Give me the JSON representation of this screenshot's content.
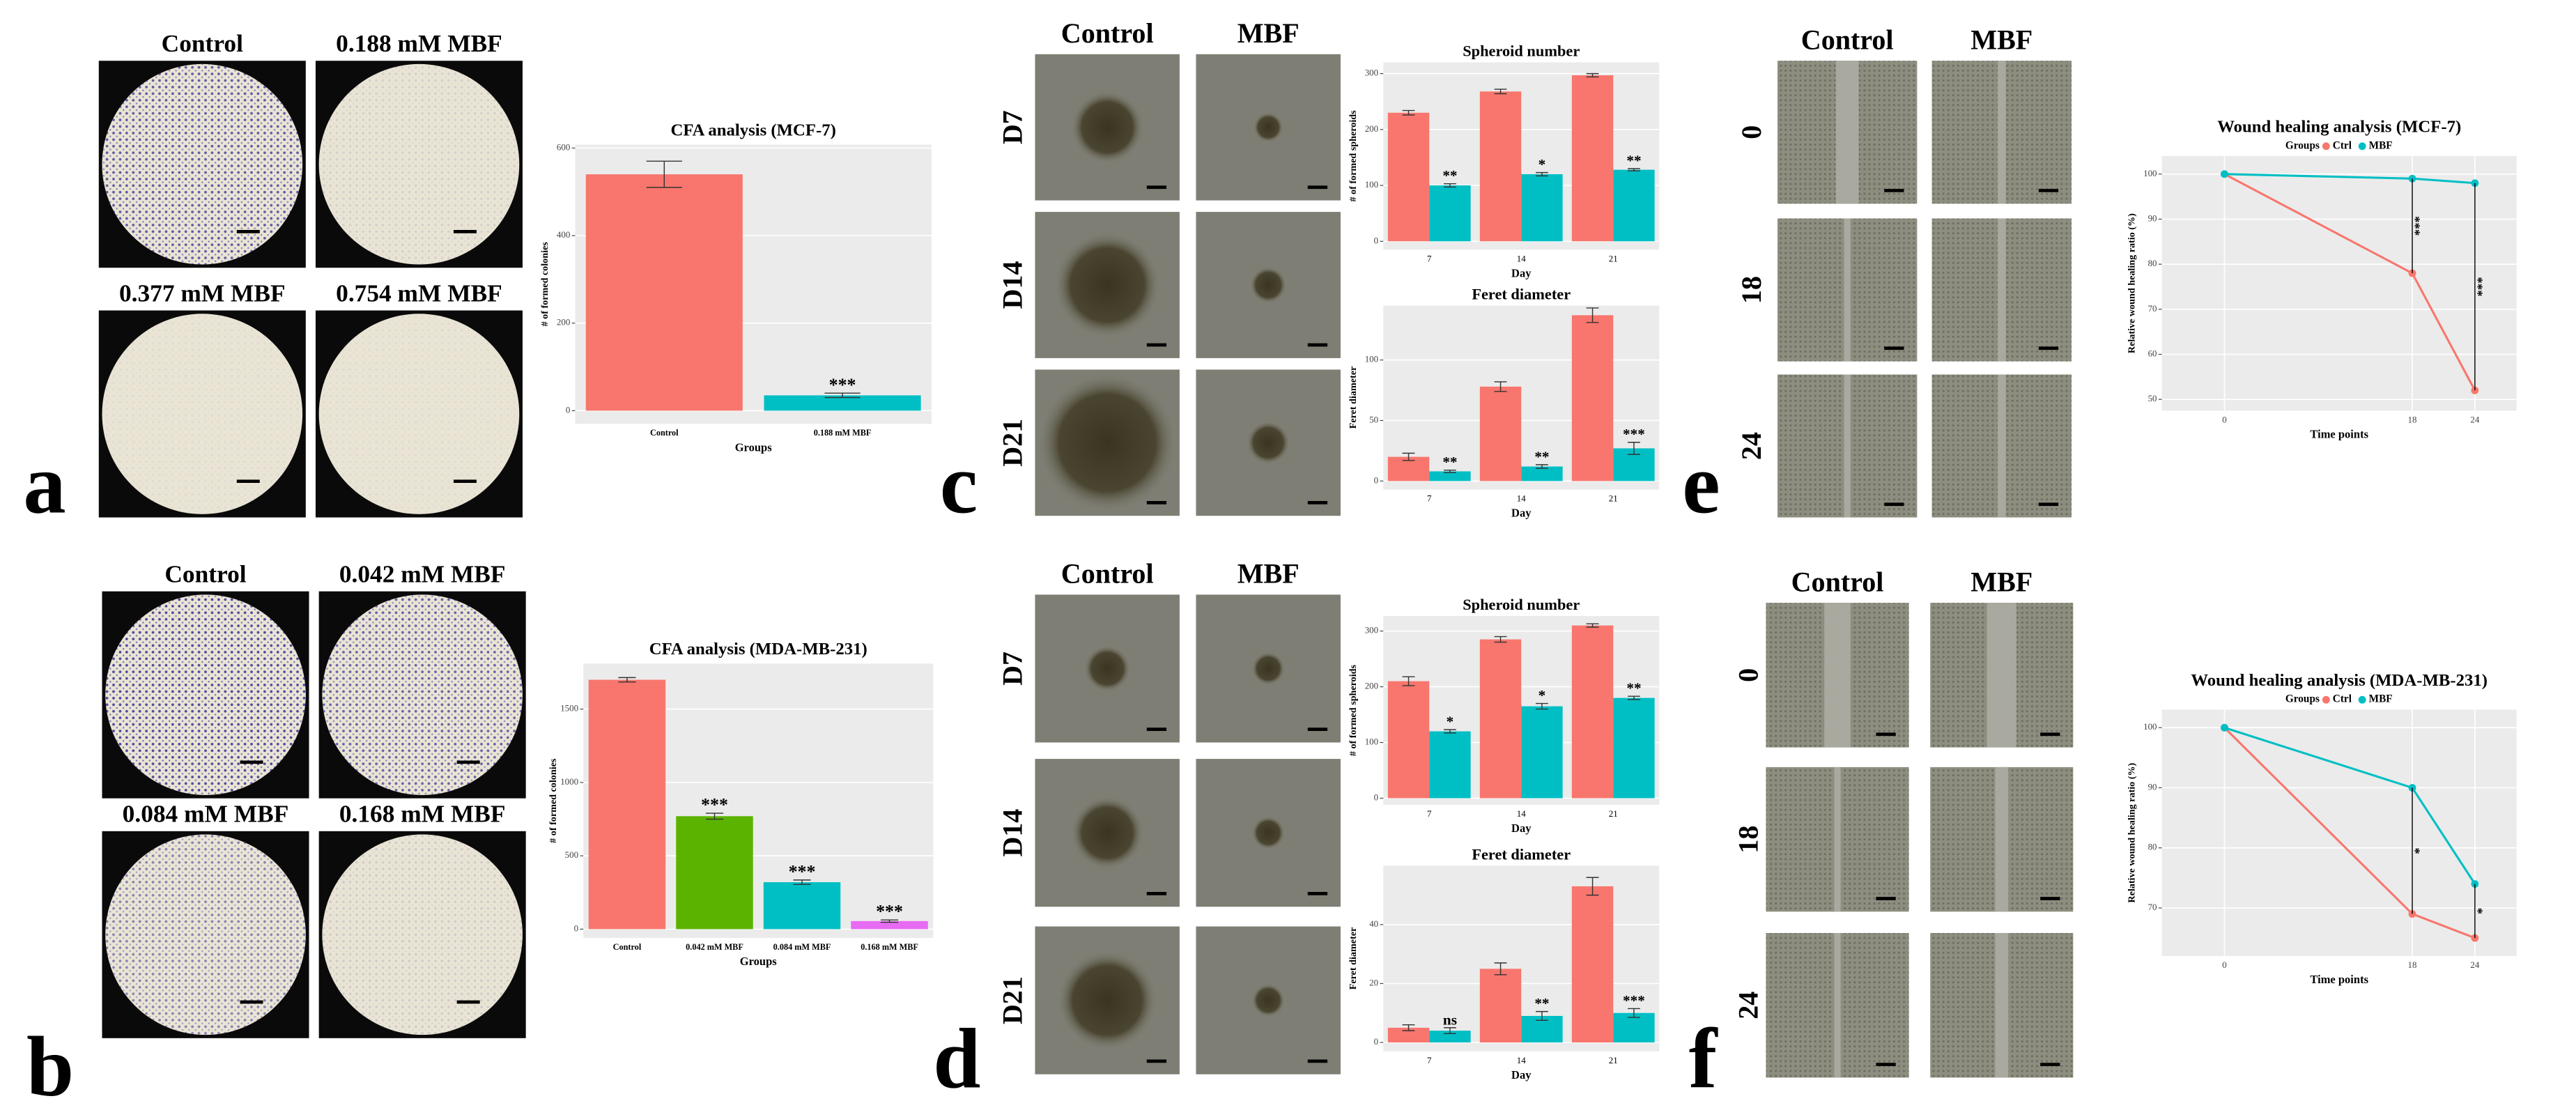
{
  "figure": {
    "a": {
      "letter": "a",
      "images": [
        "Control",
        "0.188 mM MBF",
        "0.377 mM MBF",
        "0.754 mM MBF"
      ]
    },
    "b": {
      "letter": "b",
      "images": [
        "Control",
        "0.042 mM MBF",
        "0.084 mM MBF",
        "0.168 mM MBF"
      ]
    },
    "c": {
      "letter": "c",
      "columns": [
        "Control",
        "MBF"
      ],
      "rows": [
        "D7",
        "D14",
        "D21"
      ]
    },
    "d": {
      "letter": "d",
      "columns": [
        "Control",
        "MBF"
      ],
      "rows": [
        "D7",
        "D14",
        "D21"
      ]
    },
    "e": {
      "letter": "e",
      "columns": [
        "Control",
        "MBF"
      ],
      "rows": [
        "0",
        "18",
        "24"
      ]
    },
    "f": {
      "letter": "f",
      "columns": [
        "Control",
        "MBF"
      ],
      "rows": [
        "0",
        "18",
        "24"
      ]
    }
  },
  "chart_data": [
    {
      "type": "bar",
      "title": "CFA analysis (MCF-7)",
      "x_label": "Groups",
      "y_label": "# of formed colonies",
      "categories": [
        "Control",
        "0.188 mM MBF"
      ],
      "values": [
        540,
        35
      ],
      "errors": [
        30,
        5
      ],
      "colors": [
        "#F8766D",
        "#00BFC4"
      ],
      "significance": [
        null,
        "***"
      ],
      "ylim": [
        -30,
        608
      ],
      "yticks": [
        0,
        200,
        400,
        600
      ],
      "grid": true
    },
    {
      "type": "bar",
      "title": "CFA analysis (MDA-MB-231)",
      "x_label": "Groups",
      "y_label": "# of formed colonies",
      "categories": [
        "Control",
        "0.042 mM MBF",
        "0.084 mM MBF",
        "0.168 mM MBF"
      ],
      "values": [
        1700,
        770,
        320,
        55
      ],
      "errors": [
        15,
        20,
        15,
        8
      ],
      "colors": [
        "#F8766D",
        "#5BB300",
        "#00BFC4",
        "#E76BF3"
      ],
      "significance": [
        null,
        "***",
        "***",
        "***"
      ],
      "ylim": [
        -60,
        1810
      ],
      "yticks": [
        0,
        500,
        1000,
        1500
      ],
      "grid": true
    },
    {
      "type": "grouped_bar",
      "title": "Spheroid number",
      "x_label": "Day",
      "y_label": "# of formed spheroids",
      "categories": [
        "7",
        "14",
        "21"
      ],
      "series": [
        {
          "color": "#F8766D",
          "values": [
            230,
            268,
            297
          ],
          "errors": [
            4,
            4,
            3
          ]
        },
        {
          "color": "#00BFC4",
          "values": [
            100,
            120,
            128
          ],
          "errors": [
            3,
            3,
            2
          ],
          "significance": [
            "**",
            "*",
            "**"
          ]
        }
      ],
      "ylim": [
        -15,
        320
      ],
      "yticks": [
        0,
        100,
        200,
        300
      ],
      "grid": true
    },
    {
      "type": "grouped_bar",
      "title": "Feret diameter",
      "x_label": "Day",
      "y_label": "Feret diameter",
      "categories": [
        "7",
        "14",
        "21"
      ],
      "series": [
        {
          "color": "#F8766D",
          "values": [
            20,
            78,
            137
          ],
          "errors": [
            3,
            4,
            6
          ]
        },
        {
          "color": "#00BFC4",
          "values": [
            8,
            12,
            27
          ],
          "errors": [
            1,
            1.5,
            5
          ],
          "significance": [
            "**",
            "**",
            "***"
          ]
        }
      ],
      "ylim": [
        -7,
        145
      ],
      "yticks": [
        0,
        50,
        100
      ],
      "grid": true
    },
    {
      "type": "grouped_bar",
      "title": "Spheroid number",
      "x_label": "Day",
      "y_label": "# of formed spheroids",
      "categories": [
        "7",
        "14",
        "21"
      ],
      "series": [
        {
          "color": "#F8766D",
          "values": [
            210,
            285,
            310
          ],
          "errors": [
            8,
            5,
            3
          ]
        },
        {
          "color": "#00BFC4",
          "values": [
            120,
            165,
            180
          ],
          "errors": [
            3,
            5,
            3
          ],
          "significance": [
            "*",
            "*",
            "**"
          ]
        }
      ],
      "ylim": [
        -12,
        327
      ],
      "yticks": [
        0,
        100,
        200,
        300
      ],
      "grid": true
    },
    {
      "type": "grouped_bar",
      "title": "Feret diameter",
      "x_label": "Day",
      "y_label": "Feret diameter",
      "categories": [
        "7",
        "14",
        "21"
      ],
      "series": [
        {
          "color": "#F8766D",
          "values": [
            5,
            25,
            53
          ],
          "errors": [
            1,
            2,
            3
          ]
        },
        {
          "color": "#00BFC4",
          "values": [
            4,
            9,
            10
          ],
          "errors": [
            1,
            1.5,
            1.5
          ],
          "significance": [
            "ns",
            "**",
            "***"
          ]
        }
      ],
      "ylim": [
        -3,
        60
      ],
      "yticks": [
        0,
        20,
        40
      ],
      "grid": true
    },
    {
      "type": "line",
      "title": "Wound healing analysis (MCF-7)",
      "legend_title": "Groups",
      "legend": "top",
      "x_label": "Time points",
      "y_label": "Relative wound healing ratio (%)",
      "x": [
        0,
        18,
        24
      ],
      "xlim": [
        -6,
        28
      ],
      "xticks": [
        0,
        18,
        24
      ],
      "series": [
        {
          "name": "Ctrl",
          "color": "#F8766D",
          "values": [
            100,
            78,
            52
          ]
        },
        {
          "name": "MBF",
          "color": "#00BFC4",
          "values": [
            100,
            99,
            98
          ],
          "significance": [
            null,
            "***",
            "***"
          ]
        }
      ],
      "ylim": [
        47.5,
        104
      ],
      "yticks": [
        50,
        60,
        70,
        80,
        90,
        100
      ],
      "grid": true
    },
    {
      "type": "line",
      "title": "Wound healing analysis (MDA-MB-231)",
      "legend_title": "Groups",
      "legend": "top",
      "x_label": "Time points",
      "y_label": "Relative wound healing ratio (%)",
      "x": [
        0,
        18,
        24
      ],
      "xlim": [
        -6,
        28
      ],
      "xticks": [
        0,
        18,
        24
      ],
      "series": [
        {
          "name": "Ctrl",
          "color": "#F8766D",
          "values": [
            100,
            69,
            65
          ]
        },
        {
          "name": "MBF",
          "color": "#00BFC4",
          "values": [
            100,
            90,
            74
          ],
          "significance": [
            null,
            "*",
            "*"
          ]
        }
      ],
      "ylim": [
        62,
        103
      ],
      "yticks": [
        70,
        80,
        90,
        100
      ],
      "grid": true
    }
  ]
}
